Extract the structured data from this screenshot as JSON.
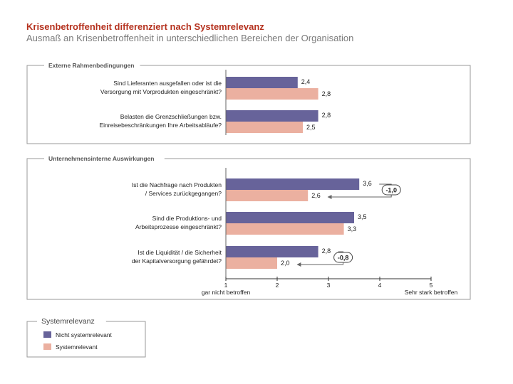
{
  "header": {
    "title": "Krisenbetroffenheit differenziert nach Systemrelevanz",
    "subtitle": "Ausmaß an Krisenbetroffenheit in unterschiedlichen Bereichen der Organisation"
  },
  "colors": {
    "nicht_systemrelevant": "#67639a",
    "systemrelevant": "#ebb0a0",
    "title": "#b5321f"
  },
  "chart_data": {
    "type": "bar",
    "orientation": "horizontal",
    "title": "Krisenbetroffenheit differenziert nach Systemrelevanz",
    "subtitle": "Ausmaß an Krisenbetroffenheit in unterschiedlichen Bereichen der Organisation",
    "xlim": [
      1,
      5
    ],
    "x_ticks": [
      "1",
      "2",
      "3",
      "4",
      "5"
    ],
    "x_low_label": "gar nicht betroffen",
    "x_high_label": "Sehr stark betroffen",
    "legend": {
      "title": "Systemrelevanz",
      "position": "bottom-left",
      "entries": [
        "Nicht systemrelevant",
        "Systemrelevant"
      ]
    },
    "sections": [
      {
        "title": "Externe Rahmenbedingungen",
        "questions": [
          {
            "line1": "Sind Lieferanten ausgefallen oder ist die",
            "line2": "Versorgung mit Vorprodukten eingeschränkt?",
            "nicht_systemrelevant": 2.4,
            "systemrelevant": 2.8,
            "nicht_label": "2,4",
            "sys_label": "2,8",
            "diff": ""
          },
          {
            "line1": "Belasten die Grenzschließungen bzw.",
            "line2": "Einreisebeschränkungen Ihre Arbeitsabläufe?",
            "nicht_systemrelevant": 2.8,
            "systemrelevant": 2.5,
            "nicht_label": "2,8",
            "sys_label": "2,5",
            "diff": ""
          }
        ]
      },
      {
        "title": "Unternehmensinterne Auswirkungen",
        "questions": [
          {
            "line1": "Ist die Nachfrage nach Produkten",
            "line2": "/ Services zurückgegangen?",
            "nicht_systemrelevant": 3.6,
            "systemrelevant": 2.6,
            "nicht_label": "3,6",
            "sys_label": "2,6",
            "diff": "-1,0"
          },
          {
            "line1": "Sind die Produktions- und",
            "line2": "Arbeitsprozesse eingeschränkt?",
            "nicht_systemrelevant": 3.5,
            "systemrelevant": 3.3,
            "nicht_label": "3,5",
            "sys_label": "3,3",
            "diff": ""
          },
          {
            "line1": "Ist die Liquidität / die Sicherheit",
            "line2": "der Kapitalversorgung gefährdet?",
            "nicht_systemrelevant": 2.8,
            "systemrelevant": 2.0,
            "nicht_label": "2,8",
            "sys_label": "2,0",
            "diff": "-0,8"
          }
        ]
      }
    ]
  }
}
